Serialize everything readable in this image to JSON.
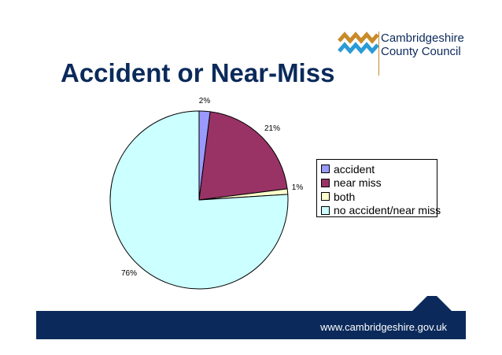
{
  "slide": {
    "title": "Accident or Near-Miss",
    "logo": {
      "line1": "Cambridgeshire",
      "line2": "County Council"
    },
    "footer": {
      "url": "www.cambridgeshire.gov.uk"
    },
    "colors": {
      "navy": "#0b2a5b",
      "logo_orange": "#c98a2a",
      "logo_blue": "#2a9bd6"
    }
  },
  "chart_data": {
    "type": "pie",
    "title": "Accident or Near-Miss",
    "categories": [
      "accident",
      "near miss",
      "both",
      "no accident/near miss"
    ],
    "values": [
      2,
      21,
      1,
      76
    ],
    "data_labels": [
      "2%",
      "21%",
      "1%",
      "76%"
    ],
    "colors": [
      "#9999ff",
      "#993366",
      "#ffffcc",
      "#ccffff"
    ],
    "legend": "right",
    "start": "12 o'clock, clockwise"
  }
}
